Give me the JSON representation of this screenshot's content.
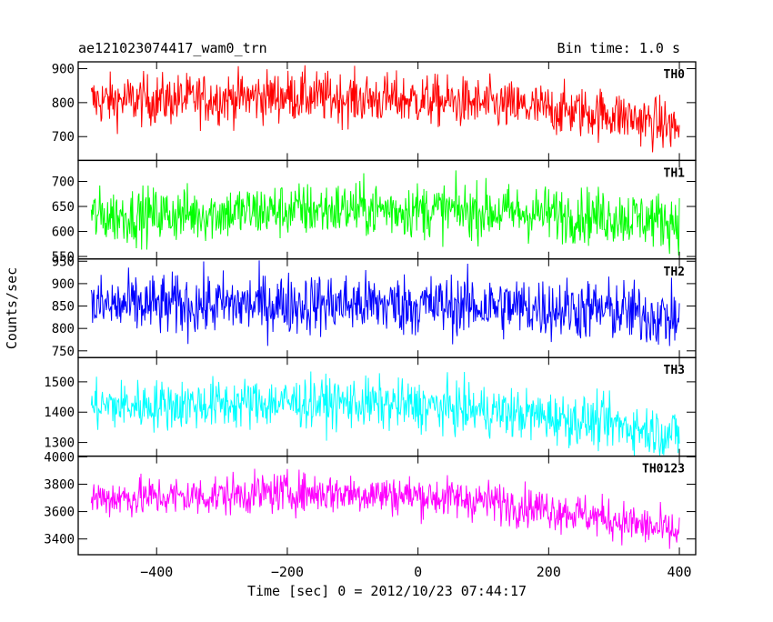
{
  "header": {
    "title": "ae121023074417_wam0_trn",
    "bin_time": "Bin time: 1.0 s"
  },
  "chart_data": {
    "type": "line",
    "title": "ae121023074417_wam0_trn",
    "subtitle": "Bin time: 1.0 s",
    "xlabel": "Time [sec] 0 = 2012/10/23 07:44:17",
    "ylabel": "Counts/sec",
    "xlim": [
      -520,
      425
    ],
    "x_ticks": [
      -400,
      -200,
      0,
      200,
      400
    ],
    "x_tick_labels": [
      "−400",
      "−200",
      "0",
      "200",
      "400"
    ],
    "x_range": [
      -500,
      400
    ],
    "grid": false,
    "panels": [
      {
        "name": "TH0",
        "color": "#ff0000",
        "ylim": [
          630,
          920
        ],
        "yticks": [
          700,
          800,
          900
        ],
        "ytick_labels": [
          "700",
          "800",
          "900"
        ],
        "trend": [
          [
            -500,
            805
          ],
          [
            -350,
            810
          ],
          [
            -200,
            820
          ],
          [
            -100,
            812
          ],
          [
            0,
            808
          ],
          [
            100,
            795
          ],
          [
            200,
            780
          ],
          [
            300,
            765
          ],
          [
            400,
            725
          ]
        ],
        "noise_sigma": 38
      },
      {
        "name": "TH1",
        "color": "#00ff00",
        "ylim": [
          545,
          742
        ],
        "yticks": [
          550,
          600,
          650,
          700
        ],
        "ytick_labels": [
          "550",
          "600",
          "650",
          "700"
        ],
        "trend": [
          [
            -500,
            630
          ],
          [
            -350,
            635
          ],
          [
            -200,
            642
          ],
          [
            -100,
            645
          ],
          [
            0,
            643
          ],
          [
            100,
            640
          ],
          [
            200,
            635
          ],
          [
            300,
            630
          ],
          [
            400,
            620
          ]
        ],
        "noise_sigma": 28
      },
      {
        "name": "TH2",
        "color": "#0000ff",
        "ylim": [
          735,
          955
        ],
        "yticks": [
          750,
          800,
          850,
          900,
          950
        ],
        "ytick_labels": [
          "750",
          "800",
          "850",
          "900",
          "950"
        ],
        "trend": [
          [
            -500,
            850
          ],
          [
            -350,
            852
          ],
          [
            -200,
            855
          ],
          [
            -100,
            855
          ],
          [
            0,
            852
          ],
          [
            100,
            850
          ],
          [
            200,
            845
          ],
          [
            300,
            840
          ],
          [
            400,
            820
          ]
        ],
        "noise_sigma": 35
      },
      {
        "name": "TH3",
        "color": "#00ffff",
        "ylim": [
          1255,
          1580
        ],
        "yticks": [
          1300,
          1400,
          1500
        ],
        "ytick_labels": [
          "1300",
          "1400",
          "1500"
        ],
        "trend": [
          [
            -500,
            1420
          ],
          [
            -350,
            1425
          ],
          [
            -200,
            1432
          ],
          [
            -100,
            1430
          ],
          [
            0,
            1420
          ],
          [
            100,
            1405
          ],
          [
            200,
            1385
          ],
          [
            300,
            1360
          ],
          [
            400,
            1325
          ]
        ],
        "noise_sigma": 42
      },
      {
        "name": "TH0123",
        "color": "#ff00ff",
        "ylim": [
          3285,
          4005
        ],
        "yticks": [
          3400,
          3600,
          3800,
          4000
        ],
        "ytick_labels": [
          "3400",
          "3600",
          "3800",
          "4000"
        ],
        "trend": [
          [
            -500,
            3700
          ],
          [
            -350,
            3710
          ],
          [
            -200,
            3740
          ],
          [
            -100,
            3735
          ],
          [
            0,
            3715
          ],
          [
            100,
            3680
          ],
          [
            200,
            3620
          ],
          [
            300,
            3540
          ],
          [
            400,
            3440
          ]
        ],
        "noise_sigma": 75
      }
    ]
  }
}
